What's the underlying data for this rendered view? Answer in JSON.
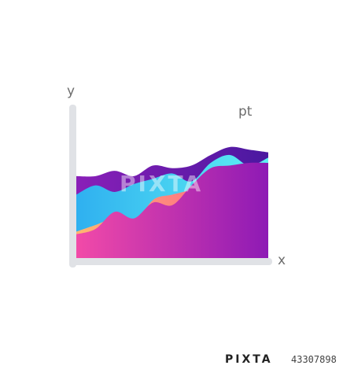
{
  "chart_data": {
    "type": "area",
    "xlabel": "x",
    "ylabel": "y",
    "annotation": "pt",
    "grid": false,
    "x": [
      0,
      1,
      2,
      3,
      4,
      5,
      6,
      7,
      8,
      9,
      10
    ],
    "ylim": [
      0,
      100
    ],
    "series": [
      {
        "color": "#a81fb8",
        "values": [
          18,
          22,
          35,
          30,
          42,
          40,
          55,
          68,
          70,
          72,
          72
        ]
      },
      {
        "color": "#ffa86e",
        "values": [
          20,
          25,
          30,
          26,
          44,
          48,
          52,
          60,
          64,
          60,
          62
        ]
      },
      {
        "color": "#3ecdf0",
        "values": [
          48,
          55,
          50,
          56,
          60,
          64,
          58,
          72,
          78,
          70,
          76
        ]
      },
      {
        "color": "#6a1aa8",
        "values": [
          62,
          62,
          66,
          62,
          70,
          68,
          70,
          78,
          84,
          82,
          80
        ]
      }
    ]
  },
  "colors": {
    "axis": "#e0e2e6",
    "text": "#6d6d6d"
  },
  "watermark": {
    "text": "PIXTA"
  },
  "footer": {
    "logo": "PIXTA",
    "id": "43307898"
  }
}
